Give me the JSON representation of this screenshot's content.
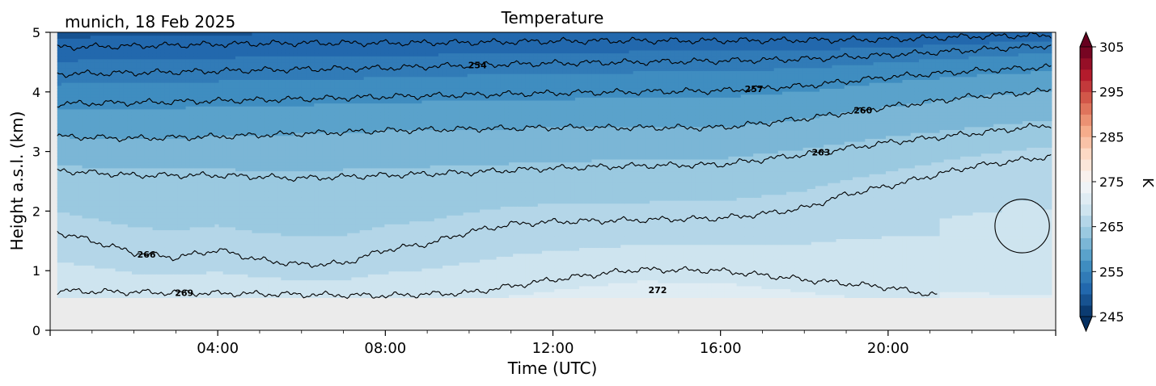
{
  "chart_data": {
    "type": "heatmap",
    "title": "Temperature",
    "subtitle": "munich, 18 Feb 2025",
    "xlabel": "Time (UTC)",
    "ylabel": "Height a.s.l. (km)",
    "xlim_hours": [
      0,
      24
    ],
    "ylim": [
      0,
      5
    ],
    "x_ticks": [
      {
        "value": 4,
        "label": "04:00"
      },
      {
        "value": 8,
        "label": "08:00"
      },
      {
        "value": 12,
        "label": "12:00"
      },
      {
        "value": 16,
        "label": "16:00"
      },
      {
        "value": 20,
        "label": "20:00"
      }
    ],
    "y_ticks": [
      {
        "value": 0,
        "label": "0"
      },
      {
        "value": 1,
        "label": "1"
      },
      {
        "value": 2,
        "label": "2"
      },
      {
        "value": 3,
        "label": "3"
      },
      {
        "value": 4,
        "label": "4"
      },
      {
        "value": 5,
        "label": "5"
      }
    ],
    "data_range": {
      "x_start": 0.17,
      "x_end": 23.9,
      "y_bottom": 0.55
    },
    "missing_color": "#ebebeb",
    "colorbar": {
      "label": "K",
      "vmin": 245,
      "vmax": 305,
      "ticks": [
        245,
        255,
        265,
        275,
        285,
        295,
        305
      ],
      "tick_labels": [
        "245",
        "255",
        "265",
        "275",
        "285",
        "295",
        "305"
      ],
      "colormap": "RdBu_r",
      "extend": "both"
    },
    "contour_interval": 3,
    "contours": [
      {
        "level": 251,
        "label": "",
        "points": [
          [
            0.17,
            4.75
          ],
          [
            2,
            4.77
          ],
          [
            4,
            4.8
          ],
          [
            6,
            4.82
          ],
          [
            8,
            4.82
          ],
          [
            10,
            4.83
          ],
          [
            12,
            4.85
          ],
          [
            14,
            4.86
          ],
          [
            16,
            4.86
          ],
          [
            18,
            4.87
          ],
          [
            20,
            4.88
          ],
          [
            22,
            4.93
          ],
          [
            23.9,
            4.95
          ]
        ]
      },
      {
        "level": 254,
        "label": "254",
        "label_x": 10.2,
        "points": [
          [
            0.17,
            4.3
          ],
          [
            2,
            4.32
          ],
          [
            4,
            4.35
          ],
          [
            6,
            4.38
          ],
          [
            8,
            4.4
          ],
          [
            10,
            4.45
          ],
          [
            12,
            4.48
          ],
          [
            14,
            4.5
          ],
          [
            16,
            4.52
          ],
          [
            18,
            4.55
          ],
          [
            20,
            4.62
          ],
          [
            22,
            4.7
          ],
          [
            23.9,
            4.78
          ]
        ]
      },
      {
        "level": 257,
        "label": "257",
        "label_x": 16.8,
        "points": [
          [
            0.17,
            3.8
          ],
          [
            2,
            3.82
          ],
          [
            4,
            3.85
          ],
          [
            6,
            3.88
          ],
          [
            8,
            3.92
          ],
          [
            10,
            3.95
          ],
          [
            12,
            3.98
          ],
          [
            14,
            4.0
          ],
          [
            16,
            4.02
          ],
          [
            18,
            4.1
          ],
          [
            20,
            4.25
          ],
          [
            22,
            4.35
          ],
          [
            23.9,
            4.42
          ]
        ]
      },
      {
        "level": 260,
        "label": "260",
        "label_x": 19.4,
        "points": [
          [
            0.17,
            3.25
          ],
          [
            2,
            3.22
          ],
          [
            4,
            3.25
          ],
          [
            6,
            3.3
          ],
          [
            8,
            3.35
          ],
          [
            10,
            3.38
          ],
          [
            12,
            3.4
          ],
          [
            14,
            3.4
          ],
          [
            16,
            3.4
          ],
          [
            18,
            3.55
          ],
          [
            20,
            3.75
          ],
          [
            22,
            3.92
          ],
          [
            23.9,
            4.02
          ]
        ]
      },
      {
        "level": 263,
        "label": "263",
        "label_x": 18.4,
        "points": [
          [
            0.17,
            2.68
          ],
          [
            2,
            2.6
          ],
          [
            4,
            2.6
          ],
          [
            6,
            2.55
          ],
          [
            8,
            2.6
          ],
          [
            10,
            2.65
          ],
          [
            12,
            2.72
          ],
          [
            14,
            2.76
          ],
          [
            16,
            2.78
          ],
          [
            18,
            2.95
          ],
          [
            20,
            3.15
          ],
          [
            22,
            3.3
          ],
          [
            23.9,
            3.45
          ]
        ]
      },
      {
        "level": 266,
        "label": "266",
        "label_x": 2.3,
        "points": [
          [
            0.17,
            1.65
          ],
          [
            1,
            1.5
          ],
          [
            2,
            1.3
          ],
          [
            3,
            1.22
          ],
          [
            4,
            1.35
          ],
          [
            5,
            1.18
          ],
          [
            6,
            1.1
          ],
          [
            7,
            1.12
          ],
          [
            8,
            1.35
          ],
          [
            9,
            1.45
          ],
          [
            10,
            1.65
          ],
          [
            11,
            1.78
          ],
          [
            12,
            1.82
          ],
          [
            14,
            1.85
          ],
          [
            16,
            1.88
          ],
          [
            17,
            1.95
          ],
          [
            18,
            2.05
          ],
          [
            19,
            2.28
          ],
          [
            20,
            2.42
          ],
          [
            22,
            2.75
          ],
          [
            23.9,
            2.92
          ]
        ]
      },
      {
        "level": 269,
        "label": "269",
        "label_x": 3.2,
        "points": [
          [
            0.17,
            0.66
          ],
          [
            2,
            0.64
          ],
          [
            4,
            0.62
          ],
          [
            6,
            0.6
          ],
          [
            8,
            0.58
          ],
          [
            10,
            0.63
          ],
          [
            12,
            0.85
          ],
          [
            14,
            1.02
          ],
          [
            16,
            1.0
          ],
          [
            18,
            0.85
          ],
          [
            20,
            0.72
          ],
          [
            21.2,
            0.58
          ]
        ]
      },
      {
        "level": 272,
        "label": "272",
        "label_x": 14.5,
        "points": []
      }
    ],
    "closed_contour": {
      "level": 269,
      "center": [
        23.2,
        1.75
      ],
      "rx": 0.65,
      "ry": 0.45
    }
  }
}
